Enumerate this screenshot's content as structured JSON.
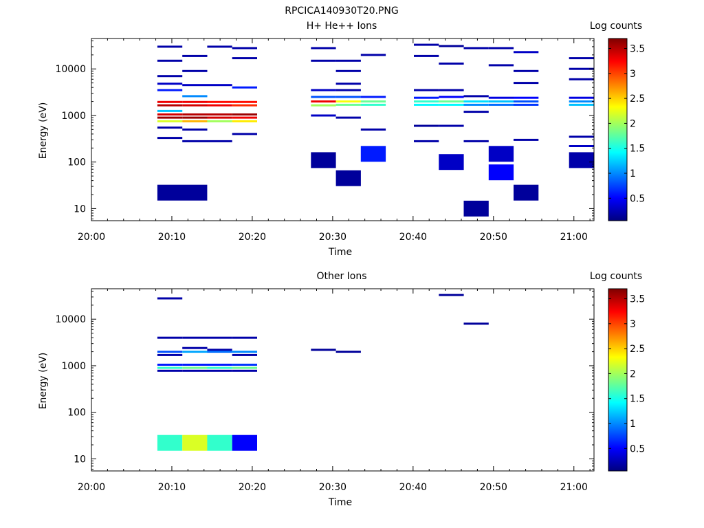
{
  "figure_title": "RPCICA140930T20.PNG",
  "colors": {
    "jet": [
      "#00007f",
      "#0000ff",
      "#007fff",
      "#00ffff",
      "#7fff7f",
      "#ffff00",
      "#ff7f00",
      "#ff0000",
      "#7f0000"
    ]
  },
  "chart_data": [
    {
      "type": "heatmap",
      "title": "H+ He++ Ions",
      "xlabel": "Time",
      "ylabel": "Energy (eV)",
      "x_ticks": [
        "20:00",
        "20:10",
        "20:20",
        "20:30",
        "20:40",
        "20:50",
        "21:00"
      ],
      "y_ticks": [
        "10",
        "100",
        "1000",
        "10000"
      ],
      "y_scale": "log",
      "ylim": [
        5.5,
        45000
      ],
      "xlim_minutes": [
        0,
        62.5
      ],
      "colorbar": {
        "label": "Log counts",
        "ticks": [
          "0.5",
          "1",
          "1.5",
          "2",
          "2.5",
          "3",
          "3.5"
        ],
        "range": [
          0.05,
          3.7
        ]
      },
      "bins": [
        {
          "t0": 8.2,
          "t1": 11.3,
          "e": 1950,
          "v": 3.3
        },
        {
          "t0": 8.2,
          "t1": 11.3,
          "e": 1650,
          "v": 3.5
        },
        {
          "t0": 8.2,
          "t1": 11.3,
          "e": 1050,
          "v": 3.4
        },
        {
          "t0": 8.2,
          "t1": 11.3,
          "e": 900,
          "v": 3.6
        },
        {
          "t0": 8.2,
          "t1": 11.3,
          "e": 1250,
          "v": 1.2
        },
        {
          "t0": 8.2,
          "t1": 11.3,
          "e": 750,
          "v": 2.2
        },
        {
          "t0": 8.2,
          "t1": 11.3,
          "e": 3500,
          "v": 0.6
        },
        {
          "t0": 8.2,
          "t1": 11.3,
          "e": 4800,
          "v": 0.3
        },
        {
          "t0": 8.2,
          "t1": 11.3,
          "e": 7000,
          "v": 0.2
        },
        {
          "t0": 8.2,
          "t1": 11.3,
          "e": 15000,
          "v": 0.2
        },
        {
          "t0": 8.2,
          "t1": 11.3,
          "e": 30000,
          "v": 0.2
        },
        {
          "t0": 8.2,
          "t1": 11.3,
          "e": 550,
          "v": 0.2
        },
        {
          "t0": 8.2,
          "t1": 11.3,
          "e": 330,
          "v": 0.2
        },
        {
          "t0": 11.3,
          "t1": 14.4,
          "e": 1950,
          "v": 3.3
        },
        {
          "t0": 11.3,
          "t1": 14.4,
          "e": 1650,
          "v": 3.4
        },
        {
          "t0": 11.3,
          "t1": 14.4,
          "e": 1050,
          "v": 3.5
        },
        {
          "t0": 11.3,
          "t1": 14.4,
          "e": 900,
          "v": 3.6
        },
        {
          "t0": 11.3,
          "t1": 14.4,
          "e": 750,
          "v": 2.6
        },
        {
          "t0": 11.3,
          "t1": 14.4,
          "e": 9000,
          "v": 0.2
        },
        {
          "t0": 11.3,
          "t1": 14.4,
          "e": 4500,
          "v": 0.3
        },
        {
          "t0": 11.3,
          "t1": 14.4,
          "e": 2600,
          "v": 1.0
        },
        {
          "t0": 11.3,
          "t1": 14.4,
          "e": 500,
          "v": 0.2
        },
        {
          "t0": 11.3,
          "t1": 14.4,
          "e": 19000,
          "v": 0.2
        },
        {
          "t0": 11.3,
          "t1": 14.4,
          "e": 280,
          "v": 0.2
        },
        {
          "t0": 14.4,
          "t1": 17.5,
          "e": 1950,
          "v": 3.2
        },
        {
          "t0": 14.4,
          "t1": 17.5,
          "e": 1650,
          "v": 3.3
        },
        {
          "t0": 14.4,
          "t1": 17.5,
          "e": 1050,
          "v": 3.5
        },
        {
          "t0": 14.4,
          "t1": 17.5,
          "e": 900,
          "v": 3.4
        },
        {
          "t0": 14.4,
          "t1": 17.5,
          "e": 750,
          "v": 2.0
        },
        {
          "t0": 14.4,
          "t1": 17.5,
          "e": 4500,
          "v": 0.3
        },
        {
          "t0": 14.4,
          "t1": 17.5,
          "e": 30000,
          "v": 0.2
        },
        {
          "t0": 14.4,
          "t1": 17.5,
          "e": 280,
          "v": 0.2
        },
        {
          "t0": 17.5,
          "t1": 20.6,
          "e": 1950,
          "v": 3.2
        },
        {
          "t0": 17.5,
          "t1": 20.6,
          "e": 1650,
          "v": 3.1
        },
        {
          "t0": 17.5,
          "t1": 20.6,
          "e": 1050,
          "v": 3.6
        },
        {
          "t0": 17.5,
          "t1": 20.6,
          "e": 900,
          "v": 3.3
        },
        {
          "t0": 17.5,
          "t1": 20.6,
          "e": 750,
          "v": 2.4
        },
        {
          "t0": 17.5,
          "t1": 20.6,
          "e": 4000,
          "v": 0.6
        },
        {
          "t0": 17.5,
          "t1": 20.6,
          "e": 28000,
          "v": 0.2
        },
        {
          "t0": 17.5,
          "t1": 20.6,
          "e": 17000,
          "v": 0.2
        },
        {
          "t0": 17.5,
          "t1": 20.6,
          "e": 400,
          "v": 0.2
        },
        {
          "t0": 8.2,
          "t1": 14.4,
          "e": 22,
          "v": 0.15
        },
        {
          "t0": 27.3,
          "t1": 30.4,
          "e": 2000,
          "v": 3.3
        },
        {
          "t0": 27.3,
          "t1": 30.4,
          "e": 1650,
          "v": 2.0
        },
        {
          "t0": 27.3,
          "t1": 30.4,
          "e": 2500,
          "v": 0.8
        },
        {
          "t0": 27.3,
          "t1": 30.4,
          "e": 3500,
          "v": 0.3
        },
        {
          "t0": 27.3,
          "t1": 30.4,
          "e": 1000,
          "v": 0.3
        },
        {
          "t0": 27.3,
          "t1": 30.4,
          "e": 28000,
          "v": 0.2
        },
        {
          "t0": 27.3,
          "t1": 30.4,
          "e": 15000,
          "v": 0.2
        },
        {
          "t0": 27.3,
          "t1": 30.4,
          "e": 110,
          "v": 0.15
        },
        {
          "t0": 30.4,
          "t1": 33.5,
          "e": 2000,
          "v": 2.3
        },
        {
          "t0": 30.4,
          "t1": 33.5,
          "e": 1700,
          "v": 1.8
        },
        {
          "t0": 30.4,
          "t1": 33.5,
          "e": 2500,
          "v": 0.8
        },
        {
          "t0": 30.4,
          "t1": 33.5,
          "e": 3500,
          "v": 0.2
        },
        {
          "t0": 30.4,
          "t1": 33.5,
          "e": 4800,
          "v": 0.2
        },
        {
          "t0": 30.4,
          "t1": 33.5,
          "e": 9000,
          "v": 0.2
        },
        {
          "t0": 30.4,
          "t1": 33.5,
          "e": 15000,
          "v": 0.2
        },
        {
          "t0": 30.4,
          "t1": 33.5,
          "e": 900,
          "v": 0.2
        },
        {
          "t0": 30.4,
          "t1": 33.5,
          "e": 45,
          "v": 0.15
        },
        {
          "t0": 33.5,
          "t1": 36.6,
          "e": 2000,
          "v": 1.8
        },
        {
          "t0": 33.5,
          "t1": 36.6,
          "e": 1700,
          "v": 1.6
        },
        {
          "t0": 33.5,
          "t1": 36.6,
          "e": 2500,
          "v": 0.6
        },
        {
          "t0": 33.5,
          "t1": 36.6,
          "e": 20000,
          "v": 0.2
        },
        {
          "t0": 33.5,
          "t1": 36.6,
          "e": 500,
          "v": 0.2
        },
        {
          "t0": 33.5,
          "t1": 36.6,
          "e": 150,
          "v": 0.6
        },
        {
          "t0": 40.1,
          "t1": 43.2,
          "e": 2000,
          "v": 1.6
        },
        {
          "t0": 40.1,
          "t1": 43.2,
          "e": 1700,
          "v": 1.4
        },
        {
          "t0": 40.1,
          "t1": 43.2,
          "e": 2400,
          "v": 0.6
        },
        {
          "t0": 40.1,
          "t1": 43.2,
          "e": 3500,
          "v": 0.2
        },
        {
          "t0": 40.1,
          "t1": 43.2,
          "e": 33000,
          "v": 0.2
        },
        {
          "t0": 40.1,
          "t1": 43.2,
          "e": 19000,
          "v": 0.2
        },
        {
          "t0": 40.1,
          "t1": 43.2,
          "e": 600,
          "v": 0.15
        },
        {
          "t0": 40.1,
          "t1": 43.2,
          "e": 280,
          "v": 0.2
        },
        {
          "t0": 43.2,
          "t1": 46.3,
          "e": 2000,
          "v": 1.8
        },
        {
          "t0": 43.2,
          "t1": 46.3,
          "e": 1700,
          "v": 1.4
        },
        {
          "t0": 43.2,
          "t1": 46.3,
          "e": 2500,
          "v": 0.5
        },
        {
          "t0": 43.2,
          "t1": 46.3,
          "e": 31000,
          "v": 0.15
        },
        {
          "t0": 43.2,
          "t1": 46.3,
          "e": 13000,
          "v": 0.2
        },
        {
          "t0": 43.2,
          "t1": 46.3,
          "e": 3500,
          "v": 0.2
        },
        {
          "t0": 43.2,
          "t1": 46.3,
          "e": 600,
          "v": 0.2
        },
        {
          "t0": 43.2,
          "t1": 46.3,
          "e": 100,
          "v": 0.3
        },
        {
          "t0": 46.3,
          "t1": 49.4,
          "e": 2000,
          "v": 1.3
        },
        {
          "t0": 46.3,
          "t1": 49.4,
          "e": 1700,
          "v": 1.0
        },
        {
          "t0": 46.3,
          "t1": 49.4,
          "e": 2600,
          "v": 0.2
        },
        {
          "t0": 46.3,
          "t1": 49.4,
          "e": 28000,
          "v": 0.2
        },
        {
          "t0": 46.3,
          "t1": 49.4,
          "e": 1200,
          "v": 0.2
        },
        {
          "t0": 46.3,
          "t1": 49.4,
          "e": 280,
          "v": 0.2
        },
        {
          "t0": 46.3,
          "t1": 49.4,
          "e": 10,
          "v": 0.15
        },
        {
          "t0": 49.4,
          "t1": 52.5,
          "e": 2000,
          "v": 1.2
        },
        {
          "t0": 49.4,
          "t1": 52.5,
          "e": 1700,
          "v": 0.9
        },
        {
          "t0": 49.4,
          "t1": 52.5,
          "e": 2400,
          "v": 0.4
        },
        {
          "t0": 49.4,
          "t1": 52.5,
          "e": 28000,
          "v": 0.2
        },
        {
          "t0": 49.4,
          "t1": 52.5,
          "e": 12000,
          "v": 0.2
        },
        {
          "t0": 49.4,
          "t1": 52.5,
          "e": 150,
          "v": 0.3
        },
        {
          "t0": 49.4,
          "t1": 52.5,
          "e": 60,
          "v": 0.5
        },
        {
          "t0": 52.5,
          "t1": 55.6,
          "e": 2000,
          "v": 0.8
        },
        {
          "t0": 52.5,
          "t1": 55.6,
          "e": 1700,
          "v": 0.7
        },
        {
          "t0": 52.5,
          "t1": 55.6,
          "e": 2400,
          "v": 0.5
        },
        {
          "t0": 52.5,
          "t1": 55.6,
          "e": 23000,
          "v": 0.3
        },
        {
          "t0": 52.5,
          "t1": 55.6,
          "e": 9000,
          "v": 0.2
        },
        {
          "t0": 52.5,
          "t1": 55.6,
          "e": 5000,
          "v": 0.2
        },
        {
          "t0": 52.5,
          "t1": 55.6,
          "e": 300,
          "v": 0.2
        },
        {
          "t0": 52.5,
          "t1": 55.6,
          "e": 22,
          "v": 0.15
        },
        {
          "t0": 59.4,
          "t1": 62.5,
          "e": 2000,
          "v": 1.0
        },
        {
          "t0": 59.4,
          "t1": 62.5,
          "e": 1700,
          "v": 1.2
        },
        {
          "t0": 59.4,
          "t1": 62.5,
          "e": 2400,
          "v": 0.4
        },
        {
          "t0": 59.4,
          "t1": 62.5,
          "e": 6000,
          "v": 0.2
        },
        {
          "t0": 59.4,
          "t1": 62.5,
          "e": 10000,
          "v": 0.2
        },
        {
          "t0": 59.4,
          "t1": 62.5,
          "e": 17000,
          "v": 0.2
        },
        {
          "t0": 59.4,
          "t1": 62.5,
          "e": 350,
          "v": 0.2
        },
        {
          "t0": 59.4,
          "t1": 62.5,
          "e": 220,
          "v": 0.3
        },
        {
          "t0": 59.4,
          "t1": 62.5,
          "e": 110,
          "v": 0.2
        }
      ]
    },
    {
      "type": "heatmap",
      "title": "Other Ions",
      "xlabel": "Time",
      "ylabel": "Energy (eV)",
      "x_ticks": [
        "20:00",
        "20:10",
        "20:20",
        "20:30",
        "20:40",
        "20:50",
        "21:00"
      ],
      "y_ticks": [
        "10",
        "100",
        "1000",
        "10000"
      ],
      "y_scale": "log",
      "ylim": [
        5.5,
        45000
      ],
      "xlim_minutes": [
        0,
        62.5
      ],
      "colorbar": {
        "label": "Log counts",
        "ticks": [
          "0.5",
          "1",
          "1.5",
          "2",
          "2.5",
          "3",
          "3.5"
        ],
        "range": [
          0.05,
          3.7
        ]
      },
      "bins": [
        {
          "t0": 8.2,
          "t1": 11.3,
          "e": 22,
          "v": 1.6
        },
        {
          "t0": 11.3,
          "t1": 14.4,
          "e": 22,
          "v": 2.2
        },
        {
          "t0": 14.4,
          "t1": 17.5,
          "e": 22,
          "v": 1.6
        },
        {
          "t0": 17.5,
          "t1": 20.6,
          "e": 22,
          "v": 0.5
        },
        {
          "t0": 8.2,
          "t1": 11.3,
          "e": 28000,
          "v": 0.2
        },
        {
          "t0": 8.2,
          "t1": 11.3,
          "e": 4000,
          "v": 0.2
        },
        {
          "t0": 8.2,
          "t1": 11.3,
          "e": 2000,
          "v": 0.8
        },
        {
          "t0": 8.2,
          "t1": 11.3,
          "e": 1700,
          "v": 0.2
        },
        {
          "t0": 8.2,
          "t1": 11.3,
          "e": 1050,
          "v": 0.6
        },
        {
          "t0": 8.2,
          "t1": 11.3,
          "e": 900,
          "v": 1.6
        },
        {
          "t0": 8.2,
          "t1": 11.3,
          "e": 780,
          "v": 0.2
        },
        {
          "t0": 11.3,
          "t1": 14.4,
          "e": 4000,
          "v": 0.2
        },
        {
          "t0": 11.3,
          "t1": 14.4,
          "e": 2400,
          "v": 0.2
        },
        {
          "t0": 11.3,
          "t1": 14.4,
          "e": 2000,
          "v": 1.1
        },
        {
          "t0": 11.3,
          "t1": 14.4,
          "e": 1050,
          "v": 0.6
        },
        {
          "t0": 11.3,
          "t1": 14.4,
          "e": 900,
          "v": 1.8
        },
        {
          "t0": 11.3,
          "t1": 14.4,
          "e": 780,
          "v": 0.2
        },
        {
          "t0": 14.4,
          "t1": 17.5,
          "e": 4000,
          "v": 0.2
        },
        {
          "t0": 14.4,
          "t1": 17.5,
          "e": 2200,
          "v": 0.2
        },
        {
          "t0": 14.4,
          "t1": 17.5,
          "e": 2000,
          "v": 0.9
        },
        {
          "t0": 14.4,
          "t1": 17.5,
          "e": 1050,
          "v": 0.6
        },
        {
          "t0": 14.4,
          "t1": 17.5,
          "e": 900,
          "v": 1.6
        },
        {
          "t0": 14.4,
          "t1": 17.5,
          "e": 780,
          "v": 0.2
        },
        {
          "t0": 17.5,
          "t1": 20.6,
          "e": 4000,
          "v": 0.2
        },
        {
          "t0": 17.5,
          "t1": 20.6,
          "e": 2000,
          "v": 1.0
        },
        {
          "t0": 17.5,
          "t1": 20.6,
          "e": 1700,
          "v": 0.2
        },
        {
          "t0": 17.5,
          "t1": 20.6,
          "e": 1050,
          "v": 0.7
        },
        {
          "t0": 17.5,
          "t1": 20.6,
          "e": 900,
          "v": 1.8
        },
        {
          "t0": 17.5,
          "t1": 20.6,
          "e": 780,
          "v": 0.2
        },
        {
          "t0": 27.3,
          "t1": 30.4,
          "e": 2200,
          "v": 0.15
        },
        {
          "t0": 30.4,
          "t1": 33.5,
          "e": 2000,
          "v": 0.15
        },
        {
          "t0": 43.2,
          "t1": 46.3,
          "e": 33000,
          "v": 0.15
        },
        {
          "t0": 46.3,
          "t1": 49.4,
          "e": 8000,
          "v": 0.15
        }
      ]
    }
  ]
}
